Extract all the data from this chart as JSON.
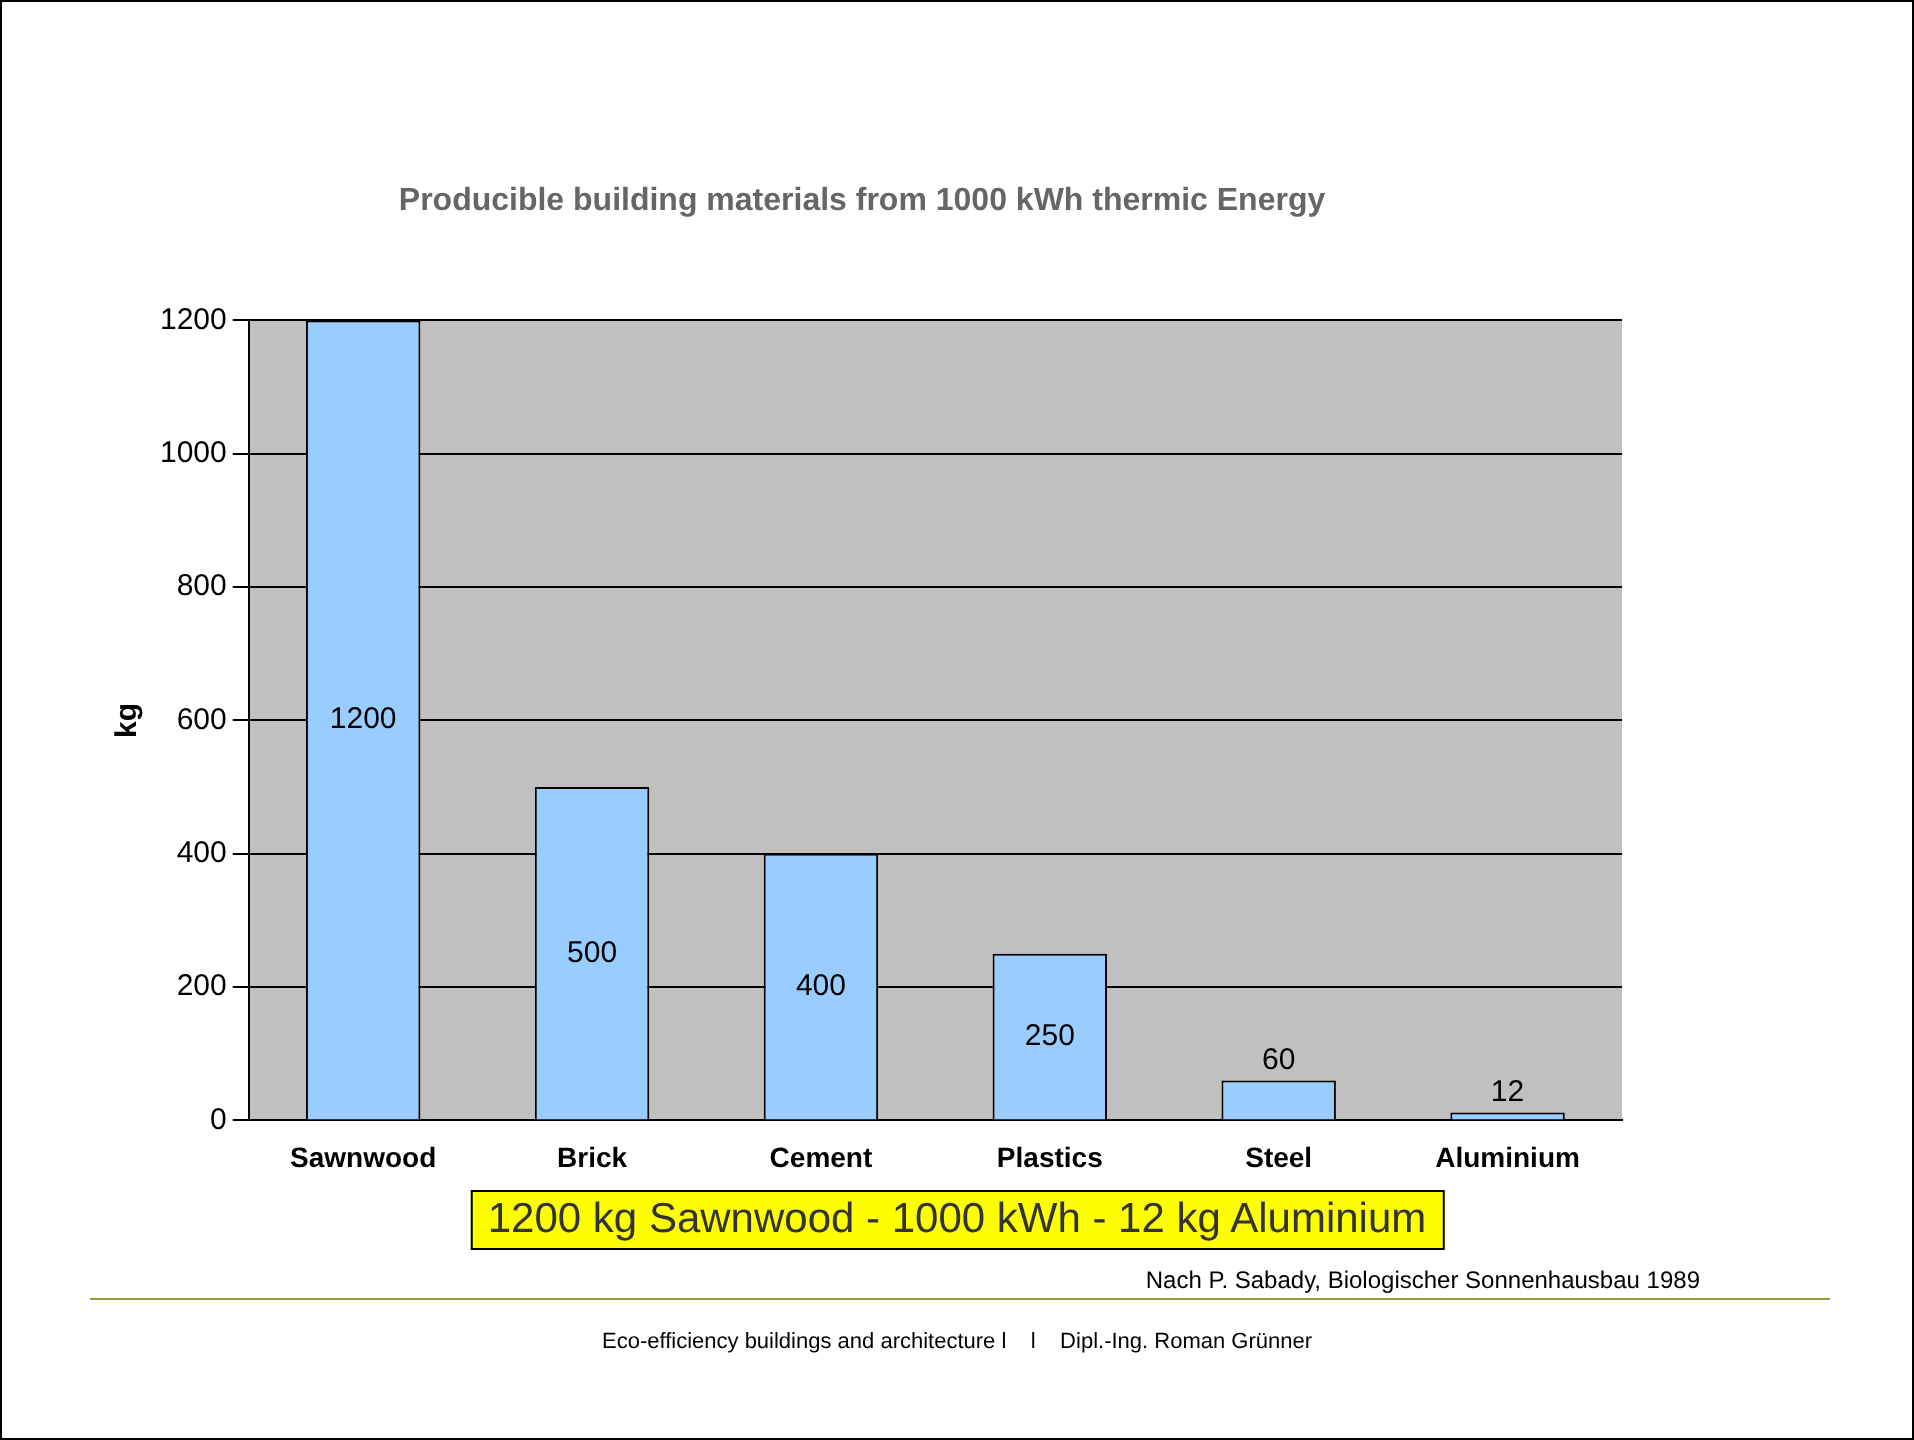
{
  "chart_data": {
    "type": "bar",
    "title": "Producible building materials from 1000 kWh thermic Energy",
    "ylabel": "kg",
    "categories": [
      "Sawnwood",
      "Brick",
      "Cement",
      "Plastics",
      "Steel",
      "Aluminium"
    ],
    "values": [
      1200,
      500,
      400,
      250,
      60,
      12
    ],
    "color": "#99ccff",
    "ylim": [
      0,
      1200
    ],
    "yticks": [
      0,
      200,
      400,
      600,
      800,
      1000,
      1200
    ],
    "grid": "y",
    "data_labels": true,
    "legend": false,
    "annotations": [
      "1200 kg Sawnwood - 1000 kWh - 12 kg Aluminium",
      "Nach P. Sabady, Biologischer Sonnenhausbau 1989",
      "Eco-efficiency buildings and architecture l    l    Dipl.-Ing. Roman Grünner"
    ]
  }
}
